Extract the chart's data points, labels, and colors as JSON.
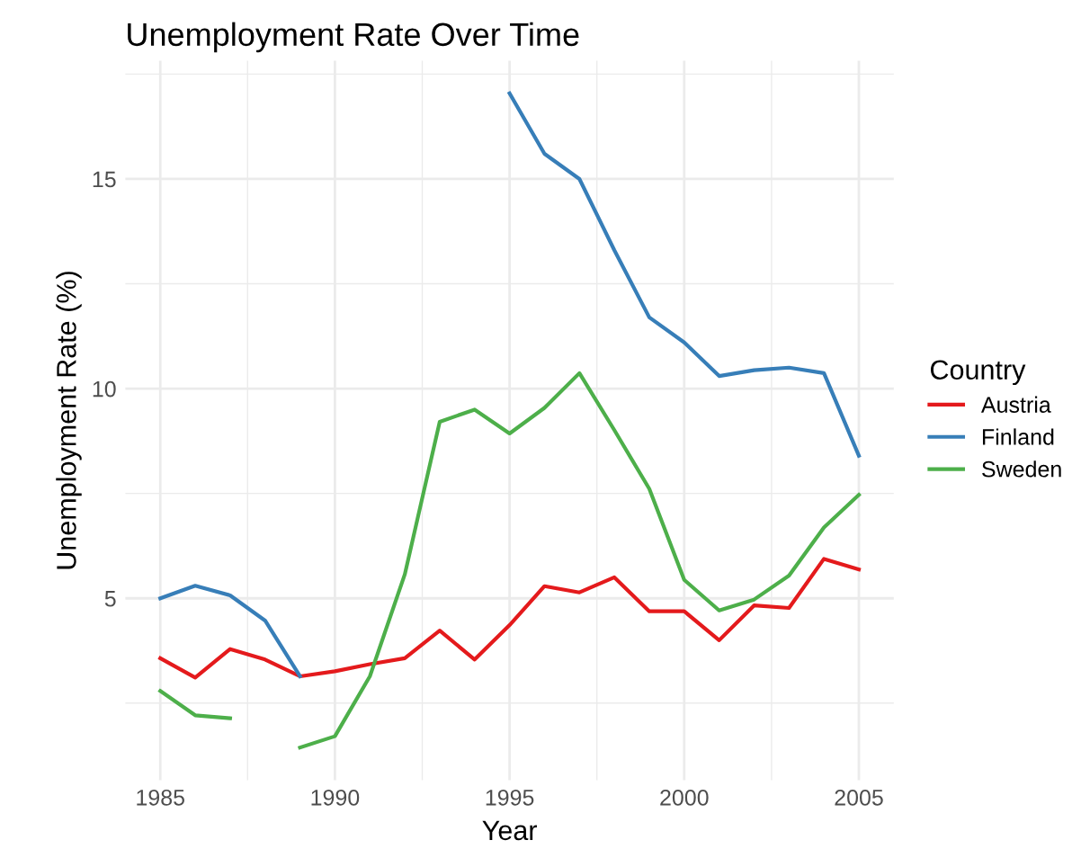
{
  "chart_data": {
    "type": "line",
    "title": "Unemployment Rate Over Time",
    "xlabel": "Year",
    "ylabel": "Unemployment Rate (%)",
    "legend_title": "Country",
    "legend": "right",
    "grid": true,
    "x": [
      1985,
      1986,
      1987,
      1988,
      1989,
      1990,
      1991,
      1992,
      1993,
      1994,
      1995,
      1996,
      1997,
      1998,
      1999,
      2000,
      2001,
      2002,
      2003,
      2004,
      2005
    ],
    "series": [
      {
        "name": "Austria",
        "color": "#e41a1c",
        "values": [
          3.57,
          3.11,
          3.79,
          3.54,
          3.14,
          3.26,
          3.43,
          3.57,
          4.23,
          3.54,
          4.36,
          5.29,
          5.14,
          5.5,
          4.69,
          4.69,
          4.0,
          4.83,
          4.77,
          5.94,
          5.69
        ]
      },
      {
        "name": "Finland",
        "color": "#377eb8",
        "values": [
          5.0,
          5.3,
          5.07,
          4.47,
          3.14,
          null,
          null,
          null,
          null,
          null,
          17.04,
          15.6,
          15.0,
          13.3,
          11.7,
          11.1,
          10.3,
          10.44,
          10.5,
          10.37,
          8.4
        ]
      },
      {
        "name": "Sweden",
        "color": "#4daf4a",
        "values": [
          2.79,
          2.21,
          2.14,
          null,
          1.44,
          1.71,
          3.14,
          5.57,
          9.21,
          9.5,
          8.93,
          9.54,
          10.37,
          9.01,
          7.61,
          5.44,
          4.71,
          4.97,
          5.54,
          6.69,
          7.47
        ]
      }
    ],
    "xlim": [
      1984,
      2006
    ],
    "ylim": [
      0.66,
      17.82
    ],
    "xticks": [
      1985,
      {
        "value": 1987.5,
        "label": null
      },
      1990,
      {
        "value": 1992.5,
        "label": null
      },
      1995,
      {
        "value": 1997.5,
        "label": null
      },
      2000,
      {
        "value": 2002.5,
        "label": null
      },
      2005
    ],
    "yticks": [
      {
        "value": 2.5,
        "label": null
      },
      5,
      {
        "value": 7.5,
        "label": null
      },
      10,
      {
        "value": 12.5,
        "label": null
      },
      15,
      {
        "value": 17.5,
        "label": null
      }
    ],
    "marker": "none",
    "line_style": "solid"
  }
}
